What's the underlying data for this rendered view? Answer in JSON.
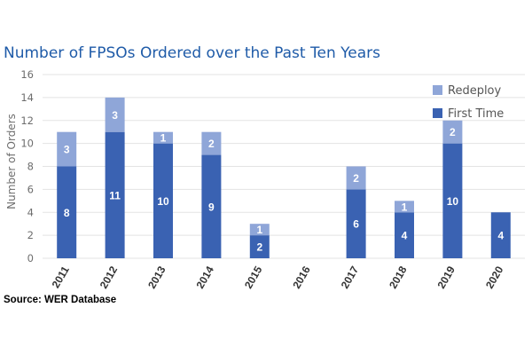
{
  "source_note": "Source: WER Database",
  "colors": {
    "first_time": "#3a62b2",
    "redeploy": "#8fa6d8",
    "grid": "#e3e3e3",
    "axis_text": "#6d6d6d",
    "title": "#1f5ba8"
  },
  "chart_data": {
    "type": "bar",
    "stacked": true,
    "title": "Number of FPSOs Ordered over the Past Ten Years",
    "xlabel": "",
    "ylabel": "Number of Orders",
    "ylim": [
      0,
      16
    ],
    "yticks": [
      0,
      2,
      4,
      6,
      8,
      10,
      12,
      14,
      16
    ],
    "grid": true,
    "legend_position": "top-right",
    "categories": [
      "2011",
      "2012",
      "2013",
      "2014",
      "2015",
      "2016",
      "2017",
      "2018",
      "2019",
      "2020"
    ],
    "series": [
      {
        "name": "First Time",
        "color": "#3a62b2",
        "values": [
          8,
          11,
          10,
          9,
          2,
          0,
          6,
          4,
          10,
          4
        ]
      },
      {
        "name": "Redeploy",
        "color": "#8fa6d8",
        "values": [
          3,
          3,
          1,
          2,
          1,
          0,
          2,
          1,
          2,
          0
        ]
      }
    ]
  }
}
